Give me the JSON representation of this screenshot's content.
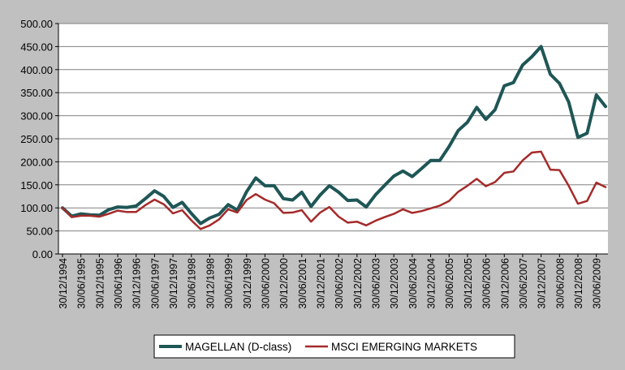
{
  "chart_data": {
    "type": "line",
    "title": "",
    "xlabel": "",
    "ylabel": "",
    "ylim": [
      0,
      500
    ],
    "yticks": [
      "0.00",
      "50.00",
      "100.00",
      "150.00",
      "200.00",
      "250.00",
      "300.00",
      "350.00",
      "400.00",
      "450.00",
      "500.00"
    ],
    "grid": true,
    "legend_position": "bottom",
    "x_tick_labels": [
      "30/12/1994",
      "30/06/1995",
      "30/12/1995",
      "30/06/1996",
      "30/12/1996",
      "30/06/1997",
      "30/12/1997",
      "30/06/1998",
      "30/12/1998",
      "30/06/1999",
      "30/12/1999",
      "30/06/2000",
      "30/12/2000",
      "30/06/2001",
      "30/12/2001",
      "30/06/2002",
      "30/12/2002",
      "30/06/2003",
      "30/12/2003",
      "30/06/2004",
      "30/12/2004",
      "30/06/2005",
      "30/12/2005",
      "30/06/2006",
      "30/12/2006",
      "30/06/2007",
      "30/12/2007",
      "30/06/2008",
      "30/12/2008",
      "30/06/2009"
    ],
    "x_range": [
      0,
      29.5
    ],
    "series": [
      {
        "name": "MAGELLAN (D-class)",
        "color": "#1f5656",
        "x": [
          0,
          0.5,
          1,
          1.5,
          2,
          2.5,
          3,
          3.5,
          4,
          4.5,
          5,
          5.5,
          6,
          6.5,
          7,
          7.5,
          8,
          8.5,
          9,
          9.5,
          10,
          10.5,
          11,
          11.5,
          12,
          12.5,
          13,
          13.5,
          14,
          14.5,
          15,
          15.5,
          16,
          16.5,
          17,
          17.5,
          18,
          18.5,
          19,
          19.5,
          20,
          20.5,
          21,
          21.5,
          22,
          22.5,
          23,
          23.5,
          24,
          24.5,
          25,
          25.5,
          26,
          26.5,
          27,
          27.5,
          28,
          28.5,
          29,
          29.5
        ],
        "values": [
          100,
          82,
          87,
          85,
          84,
          96,
          102,
          101,
          104,
          120,
          137,
          125,
          101,
          112,
          88,
          66,
          78,
          86,
          107,
          95,
          135,
          165,
          148,
          148,
          120,
          117,
          134,
          103,
          128,
          148,
          134,
          116,
          117,
          102,
          128,
          149,
          169,
          180,
          168,
          185,
          203,
          203,
          233,
          268,
          286,
          318,
          292,
          313,
          365,
          372,
          410,
          428,
          450,
          390,
          370,
          330,
          253,
          262,
          345,
          320
        ]
      },
      {
        "name": "MSCI EMERGING MARKETS",
        "color": "#a52a2a",
        "x": [
          0,
          0.5,
          1,
          1.5,
          2,
          2.5,
          3,
          3.5,
          4,
          4.5,
          5,
          5.5,
          6,
          6.5,
          7,
          7.5,
          8,
          8.5,
          9,
          9.5,
          10,
          10.5,
          11,
          11.5,
          12,
          12.5,
          13,
          13.5,
          14,
          14.5,
          15,
          15.5,
          16,
          16.5,
          17,
          17.5,
          18,
          18.5,
          19,
          19.5,
          20,
          20.5,
          21,
          21.5,
          22,
          22.5,
          23,
          23.5,
          24,
          24.5,
          25,
          25.5,
          26,
          26.5,
          27,
          27.5,
          28,
          28.5,
          29,
          29.5
        ],
        "values": [
          100,
          80,
          83,
          83,
          81,
          87,
          94,
          91,
          91,
          106,
          118,
          108,
          88,
          95,
          73,
          54,
          62,
          75,
          97,
          90,
          117,
          130,
          118,
          110,
          89,
          90,
          95,
          70,
          90,
          102,
          81,
          68,
          70,
          62,
          72,
          80,
          87,
          97,
          89,
          93,
          99,
          105,
          115,
          135,
          148,
          163,
          147,
          156,
          176,
          179,
          203,
          220,
          222,
          183,
          182,
          148,
          109,
          115,
          155,
          145
        ]
      }
    ]
  }
}
